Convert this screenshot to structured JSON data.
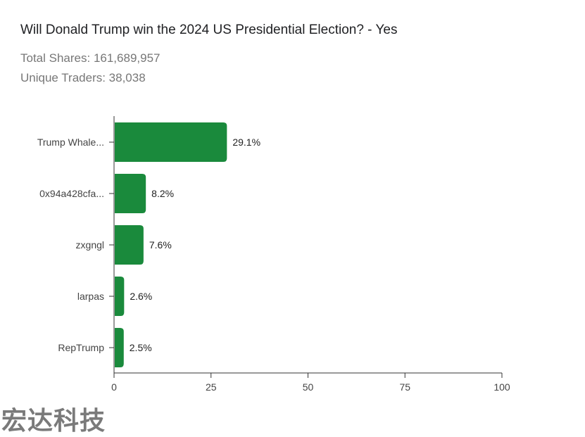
{
  "header": {
    "title": "Will Donald Trump win the 2024 US Presidential Election? - Yes",
    "total_shares": "Total Shares: 161,689,957",
    "unique_traders": "Unique Traders: 38,038"
  },
  "watermark": "宏达科技",
  "colors": {
    "bar": "#1a8a3c",
    "axis": "#333333",
    "grid": "#e0e0e0"
  },
  "chart_data": {
    "type": "bar",
    "orientation": "horizontal",
    "categories": [
      "Trump Whale...",
      "0x94a428cfa...",
      "zxgngl",
      "larpas",
      "RepTrump"
    ],
    "values": [
      29.1,
      8.2,
      7.6,
      2.6,
      2.5
    ],
    "value_labels": [
      "29.1%",
      "8.2%",
      "7.6%",
      "2.6%",
      "2.5%"
    ],
    "title": "Will Donald Trump win the 2024 US Presidential Election? - Yes",
    "xlabel": "",
    "ylabel": "",
    "xlim": [
      0,
      100
    ],
    "xticks": [
      0,
      25,
      50,
      75,
      100
    ],
    "grid": false,
    "legend": "none"
  }
}
